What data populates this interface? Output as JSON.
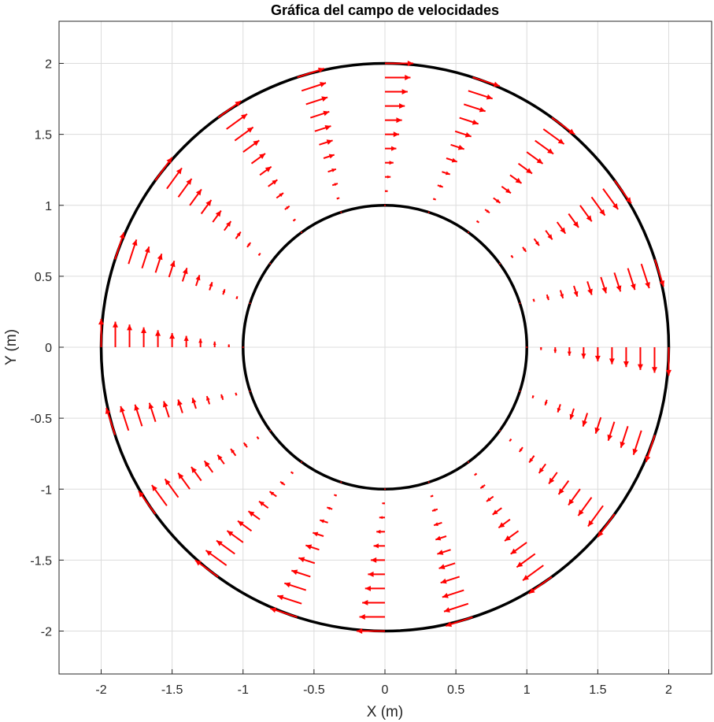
{
  "chart_data": {
    "type": "quiver",
    "title": "Gráfica del campo de velocidades",
    "xlabel": "X (m)",
    "ylabel": "Y (m)",
    "xlim": [
      -2.3,
      2.3
    ],
    "ylim": [
      -2.3,
      2.3
    ],
    "xticks": [
      -2,
      -1.5,
      -1,
      -0.5,
      0,
      0.5,
      1,
      1.5,
      2
    ],
    "yticks": [
      2,
      1.5,
      1,
      0.5,
      0,
      -0.5,
      -1,
      -1.5,
      -2
    ],
    "xtick_labels": [
      "-2",
      "-1.5",
      "-1",
      "-0.5",
      "0",
      "0.5",
      "1",
      "1.5",
      "2"
    ],
    "ytick_labels": [
      "2",
      "1.5",
      "1",
      "0.5",
      "0",
      "-0.5",
      "-1",
      "-1.5",
      "-2"
    ],
    "grid": true,
    "field": {
      "description": "clockwise rotating flow in annulus, velocity grows linearly from inner to outer wall",
      "inner_radius": 1,
      "outer_radius": 2,
      "angles_deg": [
        90,
        72,
        54,
        36,
        18,
        0,
        -18,
        -36,
        -54,
        -72,
        -90,
        -108,
        -126,
        -144,
        -162,
        180,
        162,
        144,
        126,
        108
      ],
      "radii": [
        1.0,
        1.1,
        1.2,
        1.3,
        1.4,
        1.5,
        1.6,
        1.7,
        1.8,
        1.9,
        2.0
      ],
      "speed_at_radius": [
        0.0,
        0.02,
        0.04,
        0.06,
        0.08,
        0.1,
        0.12,
        0.14,
        0.16,
        0.18,
        0.2
      ],
      "rotation": "clockwise",
      "color": "#ff0000"
    },
    "boundaries": [
      {
        "type": "circle",
        "radius": 1,
        "color": "#000000"
      },
      {
        "type": "circle",
        "radius": 2,
        "color": "#000000"
      }
    ]
  }
}
